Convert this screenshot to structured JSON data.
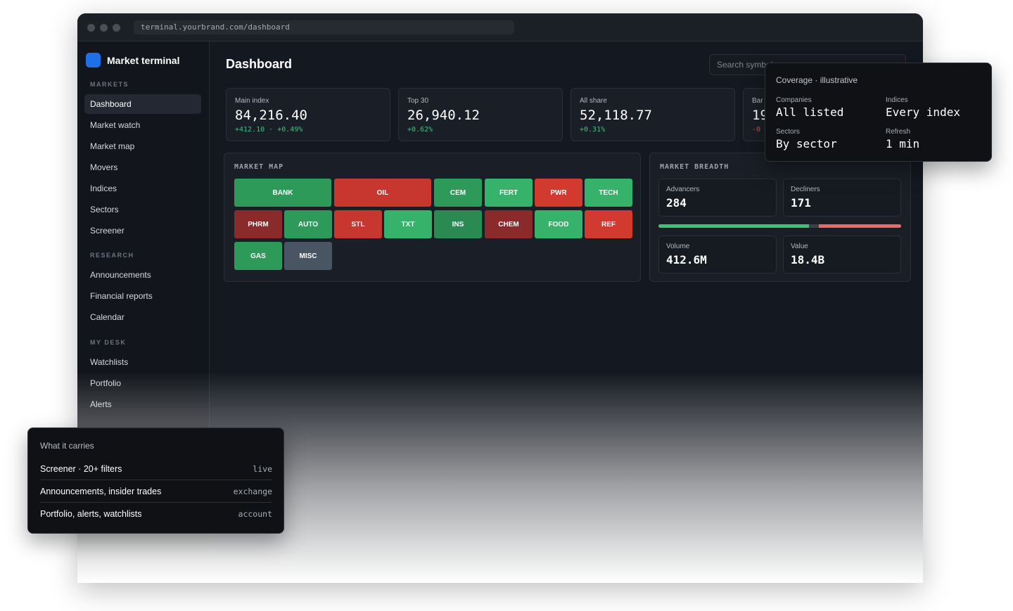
{
  "browser": {
    "url": "terminal.yourbrand.com/dashboard"
  },
  "sidebar": {
    "brand": "Market terminal",
    "sections": [
      {
        "label": "MARKETS",
        "items": [
          "Dashboard",
          "Market watch",
          "Market map",
          "Movers",
          "Indices",
          "Sectors",
          "Screener"
        ]
      },
      {
        "label": "RESEARCH",
        "items": [
          "Announcements",
          "Financial reports",
          "Calendar"
        ]
      },
      {
        "label": "MY DESK",
        "items": [
          "Watchlists",
          "Portfolio",
          "Alerts"
        ]
      }
    ],
    "active_item": "Dashboard"
  },
  "header": {
    "title": "Dashboard",
    "search_placeholder": "Search symbols"
  },
  "kpis": [
    {
      "label": "Main index",
      "value": "84,216.40",
      "change": "+412.10 · +0.49%",
      "trend": "up"
    },
    {
      "label": "Top 30",
      "value": "26,940.12",
      "change": "+0.62%",
      "trend": "up"
    },
    {
      "label": "All share",
      "value": "52,118.77",
      "change": "+0.31%",
      "trend": "up"
    },
    {
      "label": "Bar",
      "value": "19",
      "change": "-0",
      "trend": "down"
    }
  ],
  "market_map": {
    "title": "MARKET MAP",
    "tiles": [
      {
        "label": "BANK",
        "color": "#2e9a5a"
      },
      {
        "label": "OIL",
        "color": "#c8372f"
      },
      {
        "label": "CEM",
        "color": "#2e9a5a"
      },
      {
        "label": "FERT",
        "color": "#37b26a"
      },
      {
        "label": "PWR",
        "color": "#d23a30"
      },
      {
        "label": "TECH",
        "color": "#37b26a"
      },
      {
        "label": "PHRM",
        "color": "#8a2a2a"
      },
      {
        "label": "AUTO",
        "color": "#2e9a5a"
      },
      {
        "label": "STL",
        "color": "#c8372f"
      },
      {
        "label": "TXT",
        "color": "#37b26a"
      },
      {
        "label": "INS",
        "color": "#2a8a52"
      },
      {
        "label": "CHEM",
        "color": "#8a2a2a"
      },
      {
        "label": "FOOD",
        "color": "#37b26a"
      },
      {
        "label": "REF",
        "color": "#d23a30"
      },
      {
        "label": "GAS",
        "color": "#2e9a5a"
      },
      {
        "label": "MISC",
        "color": "#4a5564"
      }
    ]
  },
  "breadth": {
    "title": "MARKET BREADTH",
    "advancers_label": "Advancers",
    "advancers": "284",
    "decliners_label": "Decliners",
    "decliners": "171",
    "volume_label": "Volume",
    "volume": "412.6M",
    "value_label": "Value",
    "value": "18.4B",
    "bar": {
      "advance_fraction": 0.62,
      "unchanged_fraction": 0.04,
      "decline_fraction": 0.34,
      "advance_color": "#3ec27a",
      "unchanged_color": "#3a3f48",
      "decline_color": "#e86a6a"
    }
  },
  "coverage": {
    "title": "Coverage · illustrative",
    "items": [
      {
        "label": "Companies",
        "value": "All listed"
      },
      {
        "label": "Indices",
        "value": "Every index"
      },
      {
        "label": "Sectors",
        "value": "By sector"
      },
      {
        "label": "Refresh",
        "value": "1 min"
      }
    ]
  },
  "carries": {
    "title": "What it carries",
    "rows": [
      {
        "text": "Screener · 20+ filters",
        "tag": "live"
      },
      {
        "text": "Announcements, insider trades",
        "tag": "exchange"
      },
      {
        "text": "Portfolio, alerts, watchlists",
        "tag": "account"
      }
    ]
  }
}
